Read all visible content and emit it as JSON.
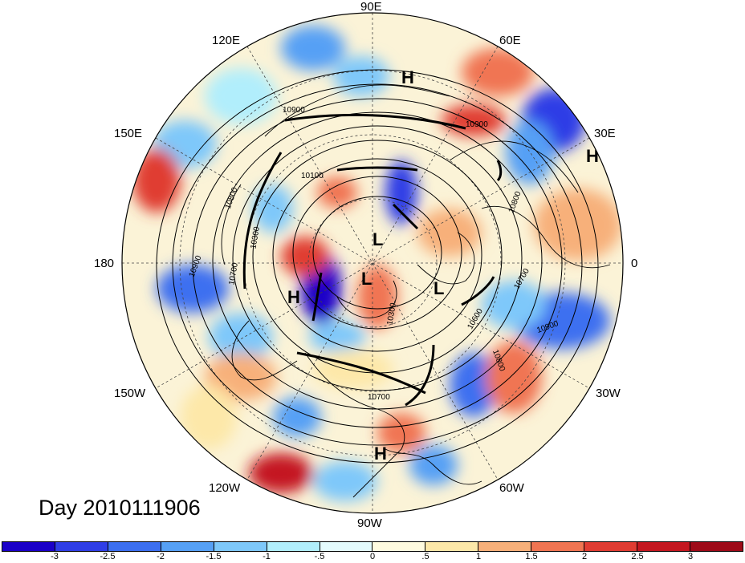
{
  "title": "Day 2010111906",
  "longitude_labels": {
    "e90": "90E",
    "e60": "60E",
    "e30": "30E",
    "zero": "0",
    "w30": "30W",
    "w60": "60W",
    "w90": "90W",
    "w120": "120W",
    "w150": "150W",
    "dateline": "180",
    "e150": "150E",
    "e120": "120E"
  },
  "pressure_centers": [
    {
      "type": "H",
      "region": "siberia-north"
    },
    {
      "type": "H",
      "region": "europe-east"
    },
    {
      "type": "L",
      "region": "arctic"
    },
    {
      "type": "L",
      "region": "greenland"
    },
    {
      "type": "L",
      "region": "baffin"
    },
    {
      "type": "H",
      "region": "bering"
    },
    {
      "type": "H",
      "region": "central-america"
    }
  ],
  "contour_labels": [
    "10900",
    "10100",
    "10800",
    "10300",
    "10900",
    "10700",
    "10800",
    "10700",
    "10600",
    "10900",
    "10800",
    "10700",
    "10300",
    "10900"
  ],
  "colorbar": {
    "ticks": [
      "-3",
      "-2.5",
      "-2",
      "-1.5",
      "-1",
      "-.5",
      "0",
      ".5",
      "1",
      "1.5",
      "2",
      "2.5",
      "3"
    ],
    "colors": [
      "#1a00c8",
      "#2f3ee6",
      "#3c6ff0",
      "#56a0f5",
      "#7ec8fa",
      "#b1eefc",
      "#e4fbfd",
      "#fffbe0",
      "#fde8a9",
      "#f7b07a",
      "#f07552",
      "#e03c32",
      "#c41720",
      "#9e0a18"
    ]
  },
  "colors": {
    "ocean_neutral": "#fbf3d7",
    "outside": "#ffffff",
    "lines": "#000000"
  }
}
